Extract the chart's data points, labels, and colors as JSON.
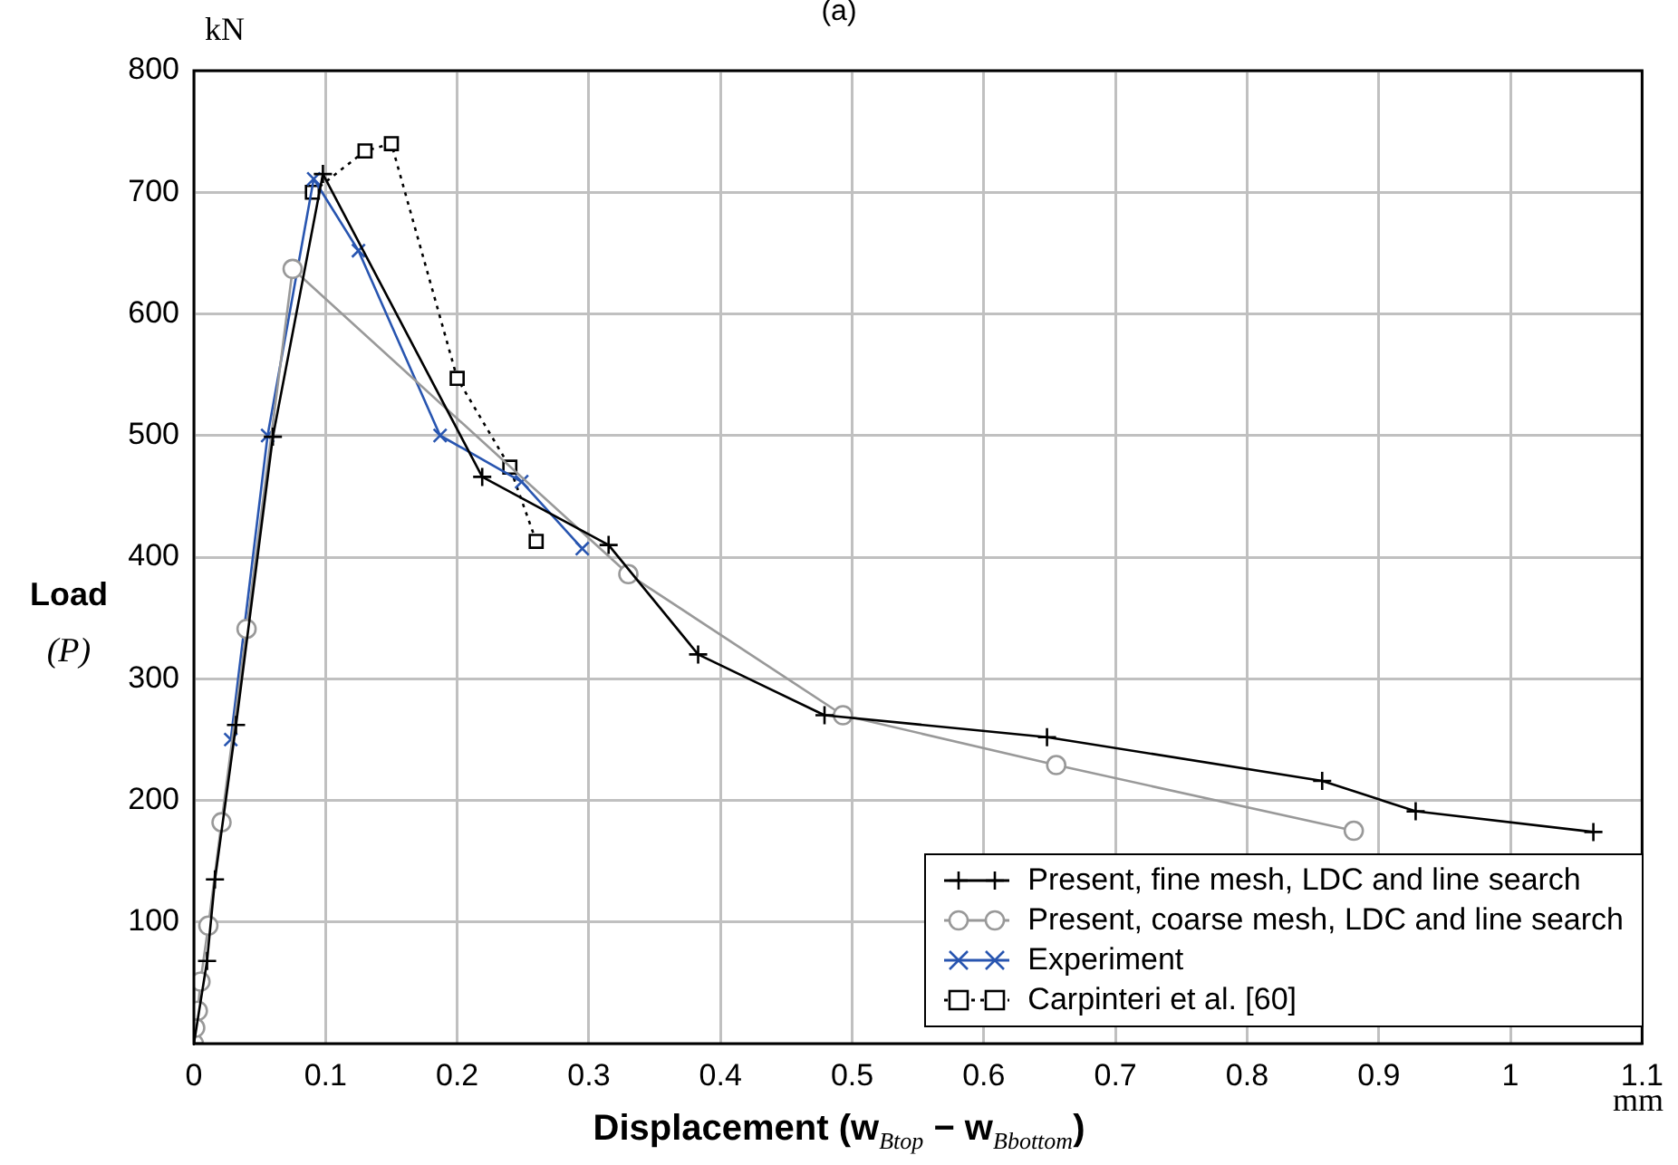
{
  "chart_data": {
    "type": "line",
    "title": "(a)",
    "xlabel": "Displacement  (w$_{Btop}$ − w$_{Bbottom}$)",
    "ylabel": "Load (P)",
    "annotations": [
      "kN",
      "mm"
    ],
    "xlim": [
      0,
      1.1
    ],
    "xticks": [
      0,
      0.1,
      0.2,
      0.3,
      0.4,
      0.5,
      0.6,
      0.7,
      0.8,
      0.9,
      1,
      1.1
    ],
    "ylim": [
      0,
      800
    ],
    "yticks": [
      {
        "value": 0,
        "label": null
      },
      100,
      200,
      300,
      400,
      500,
      600,
      700,
      800
    ],
    "grid": true,
    "legend": "bottom right",
    "series": [
      {
        "name": "Present, fine mesh, LDC and line search",
        "color": "#000000",
        "marker": "cross",
        "line_style": "solid",
        "x": [
          0,
          0.01,
          0.016,
          0.032,
          0.06,
          0.098,
          0.219,
          0.315,
          0.383,
          0.479,
          0.648,
          0.857,
          0.928,
          1.063
        ],
        "values": [
          0,
          68,
          135,
          262,
          499,
          715,
          466,
          410,
          320,
          270,
          252,
          216,
          191,
          174
        ]
      },
      {
        "name": "Present, coarse mesh, LDC and line search",
        "color": "#999999",
        "marker": "circle",
        "line_style": "solid",
        "x": [
          0,
          0.001,
          0.003,
          0.005,
          0.011,
          0.021,
          0.04,
          0.075,
          0.33,
          0.493,
          0.655,
          0.881
        ],
        "values": [
          0,
          13,
          27,
          51,
          97,
          182,
          341,
          637,
          386,
          270,
          229,
          175
        ]
      },
      {
        "name": "Experiment",
        "color": "#2855b0",
        "marker": "x",
        "line_style": "solid",
        "x": [
          0.028,
          0.056,
          0.091,
          0.125,
          0.187,
          0.249,
          0.295
        ],
        "values": [
          250,
          500,
          711,
          652,
          500,
          462,
          407
        ]
      },
      {
        "name": "Carpinteri et al. [60]",
        "color": "#000000",
        "marker": "square",
        "line_style": "dotted",
        "x": [
          0.09,
          0.13,
          0.15,
          0.2,
          0.24,
          0.26
        ],
        "values": [
          700,
          734,
          740,
          547,
          474,
          413
        ]
      }
    ]
  }
}
